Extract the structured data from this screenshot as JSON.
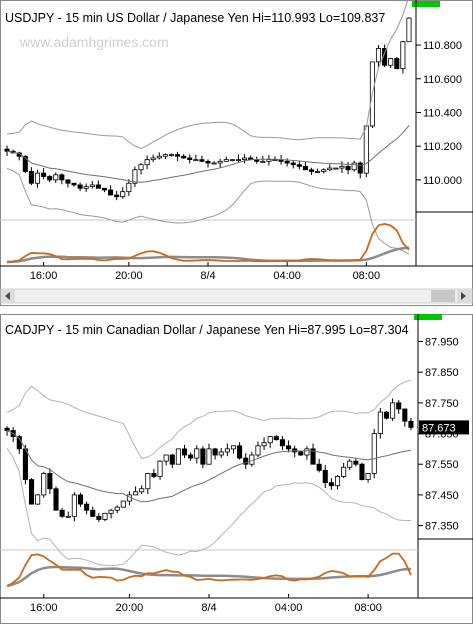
{
  "chart_data": [
    {
      "type": "candlestick",
      "title": "USDJPY - 15 min  US Dollar / Japanese Yen  Hi=110.993  Lo=109.837",
      "watermark": "www.adamhgrimes.com",
      "yticks": [
        "110.800",
        "110.600",
        "110.400",
        "110.200",
        "110.000"
      ],
      "ytick_values": [
        110.8,
        110.6,
        110.4,
        110.2,
        110.0
      ],
      "ylim": [
        109.75,
        111.02
      ],
      "xticks": [
        "16:00",
        "20:00",
        "8/4",
        "04:00",
        "08:00"
      ],
      "xtick_bars": [
        6,
        20,
        33,
        46,
        59
      ],
      "n_bars": 67,
      "colors": {
        "up": "#ffffff",
        "down": "#000000",
        "band": "#9a9a9a",
        "indicator": "#cc6a1a",
        "indicator2": "#8c8c8c",
        "scroll_indicator": "#00c800"
      },
      "close_path": [
        110.17,
        110.16,
        110.14,
        110.05,
        109.98,
        110.04,
        110.02,
        110.0,
        110.03,
        110.0,
        109.98,
        109.97,
        109.95,
        109.96,
        109.97,
        109.95,
        109.94,
        109.91,
        109.9,
        109.93,
        109.98,
        110.06,
        110.09,
        110.12,
        110.13,
        110.14,
        110.15,
        110.15,
        110.14,
        110.13,
        110.12,
        110.12,
        110.11,
        110.1,
        110.1,
        110.11,
        110.12,
        110.12,
        110.12,
        110.13,
        110.12,
        110.11,
        110.11,
        110.12,
        110.12,
        110.11,
        110.1,
        110.09,
        110.08,
        110.06,
        110.05,
        110.05,
        110.06,
        110.07,
        110.07,
        110.08,
        110.06,
        110.1,
        110.04,
        110.32,
        110.7,
        110.78,
        110.68,
        110.72,
        110.66,
        110.82,
        110.96
      ]
    },
    {
      "type": "candlestick",
      "title": "CADJPY - 15 min  Canadian Dollar / Japanese Yen  Hi=87.995  Lo=87.304",
      "yticks": [
        "87.950",
        "87.850",
        "87.750",
        "87.650",
        "87.550",
        "87.450",
        "87.350"
      ],
      "ytick_values": [
        87.95,
        87.85,
        87.75,
        87.65,
        87.55,
        87.45,
        87.35
      ],
      "ylim": [
        87.29,
        88.02
      ],
      "last_price": "87.673",
      "xticks": [
        "16:00",
        "20:00",
        "8/4",
        "04:00",
        "08:00"
      ],
      "xtick_bars": [
        6,
        20,
        33,
        46,
        59
      ],
      "n_bars": 67,
      "colors": {
        "up": "#ffffff",
        "down": "#000000",
        "band": "#b4b4b4",
        "indicator": "#cc6a1a",
        "indicator2": "#8c8c8c",
        "scroll_indicator": "#00c800",
        "last_price_bg": "#000000"
      },
      "close_path": [
        87.66,
        87.64,
        87.6,
        87.5,
        87.42,
        87.45,
        87.52,
        87.47,
        87.4,
        87.38,
        87.38,
        87.45,
        87.42,
        87.4,
        87.38,
        87.37,
        87.39,
        87.4,
        87.41,
        87.43,
        87.45,
        87.46,
        87.47,
        87.52,
        87.51,
        87.56,
        87.58,
        87.55,
        87.6,
        87.58,
        87.57,
        87.6,
        87.55,
        87.6,
        87.58,
        87.59,
        87.6,
        87.61,
        87.57,
        87.55,
        87.58,
        87.61,
        87.62,
        87.64,
        87.63,
        87.61,
        87.6,
        87.59,
        87.58,
        87.6,
        87.55,
        87.53,
        87.49,
        87.48,
        87.51,
        87.54,
        87.56,
        87.55,
        87.5,
        87.52,
        87.65,
        87.72,
        87.7,
        87.75,
        87.73,
        87.69,
        87.67
      ]
    }
  ]
}
